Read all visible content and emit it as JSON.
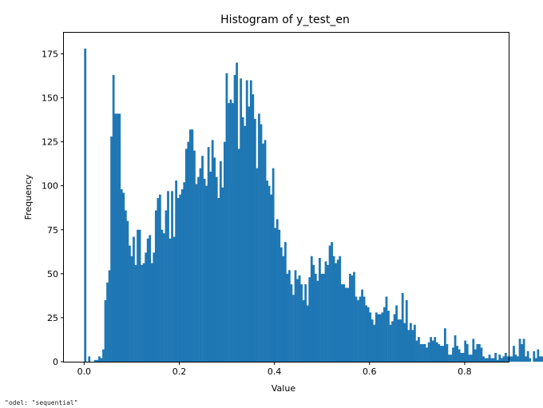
{
  "footer_text": "\"odel: \"sequential\"",
  "chart_data": {
    "type": "bar",
    "title": "Histogram of y_test_en",
    "xlabel": "Value",
    "ylabel": "Frequency",
    "xlim": [
      -0.0425,
      0.8925
    ],
    "ylim": [
      0,
      187
    ],
    "xticks": [
      0.0,
      0.2,
      0.4,
      0.6,
      0.8
    ],
    "xtick_labels": [
      "0.0",
      "0.2",
      "0.4",
      "0.6",
      "0.8"
    ],
    "yticks": [
      0,
      25,
      50,
      75,
      100,
      125,
      150,
      175
    ],
    "ytick_labels": [
      "0",
      "25",
      "50",
      "75",
      "100",
      "125",
      "150",
      "175"
    ],
    "grid": false,
    "legend": "none",
    "bar_color": "#1f77b4",
    "bin_width": 0.00425,
    "bin_start": 0.0,
    "values": [
      178,
      0,
      3,
      0,
      0,
      1,
      1,
      3,
      2,
      7,
      35,
      45,
      52,
      128,
      163,
      141,
      141,
      141,
      98,
      96,
      86,
      80,
      66,
      60,
      71,
      55,
      75,
      75,
      55,
      56,
      62,
      70,
      72,
      56,
      62,
      86,
      93,
      95,
      75,
      73,
      86,
      97,
      70,
      97,
      71,
      103,
      93,
      95,
      98,
      102,
      121,
      125,
      132,
      132,
      120,
      101,
      105,
      110,
      117,
      104,
      100,
      122,
      108,
      126,
      116,
      105,
      93,
      114,
      99,
      125,
      164,
      147,
      149,
      147,
      163,
      170,
      121,
      161,
      139,
      134,
      160,
      145,
      160,
      152,
      138,
      110,
      141,
      135,
      124,
      126,
      103,
      100,
      95,
      110,
      76,
      81,
      75,
      65,
      60,
      68,
      50,
      52,
      44,
      38,
      52,
      47,
      49,
      44,
      35,
      44,
      32,
      48,
      60,
      55,
      50,
      46,
      59,
      50,
      50,
      57,
      55,
      66,
      68,
      60,
      56,
      58,
      60,
      44,
      44,
      42,
      42,
      50,
      49,
      51,
      37,
      35,
      37,
      41,
      37,
      32,
      31,
      28,
      24,
      21,
      28,
      27,
      27,
      28,
      31,
      37,
      29,
      21,
      23,
      27,
      32,
      24,
      24,
      39,
      22,
      35,
      18,
      22,
      18,
      21,
      12,
      14,
      10,
      10,
      10,
      8,
      11,
      14,
      12,
      14,
      11,
      10,
      9,
      9,
      19,
      10,
      4,
      4,
      8,
      15,
      9,
      7,
      5,
      5,
      12,
      10,
      4,
      4,
      13,
      7,
      10,
      10,
      8,
      3,
      2,
      2,
      4,
      2,
      2,
      5,
      1,
      4,
      2,
      3,
      5,
      3,
      3,
      3,
      9,
      4,
      3,
      13,
      10,
      13,
      3,
      6,
      2,
      0,
      6,
      2,
      7,
      3,
      3,
      1,
      1,
      3,
      1,
      2,
      0,
      1,
      0,
      0,
      1,
      2,
      1,
      0,
      0,
      1,
      1,
      3,
      1,
      1,
      0,
      0,
      1
    ]
  }
}
